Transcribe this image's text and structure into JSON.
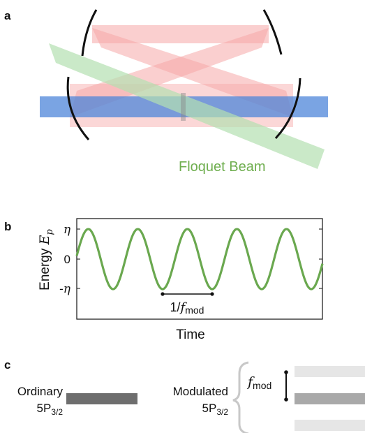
{
  "panel_a": {
    "label": "a",
    "beam_label": "Floquet Beam",
    "colors": {
      "cavity_beam": "#f6a7a7",
      "probe_beam": "#4d86d9",
      "floquet_beam": "#b4e0b0",
      "floquet_text": "#6fae4f",
      "mirror": "#111111"
    }
  },
  "panel_b": {
    "label": "b",
    "ylabel_main": "Energy ",
    "ylabel_symbol": "E",
    "ylabel_sub": "p",
    "xlabel": "Time",
    "ytick_top": "η",
    "ytick_mid": "0",
    "ytick_bot": "-η",
    "period_label_prefix": "1/",
    "period_label_f": "f",
    "period_label_sub": "mod",
    "wave_color": "#6aa84f"
  },
  "chart_data": {
    "type": "line",
    "title": "",
    "xlabel": "Time",
    "ylabel": "Energy E_p",
    "yticks": [
      "η",
      "0",
      "-η"
    ],
    "series": [
      {
        "function": "sin",
        "amplitude": "η",
        "cycles_shown": 5,
        "color": "#6aa84f"
      }
    ],
    "annotation": "1/f_mod"
  },
  "panel_c": {
    "label": "c",
    "ordinary_label": "Ordinary",
    "ordinary_state": "5P",
    "ordinary_sub": "3/2",
    "modulated_label": "Modulated",
    "modulated_state": "5P",
    "modulated_sub": "3/2",
    "fmod_f": "f",
    "fmod_sub": "mod",
    "colors": {
      "ordinary_bar": "#6e6e6e",
      "main_bar": "#a9a9a9",
      "side_bar": "#e6e6e6",
      "brace": "#c8c8c8"
    }
  }
}
